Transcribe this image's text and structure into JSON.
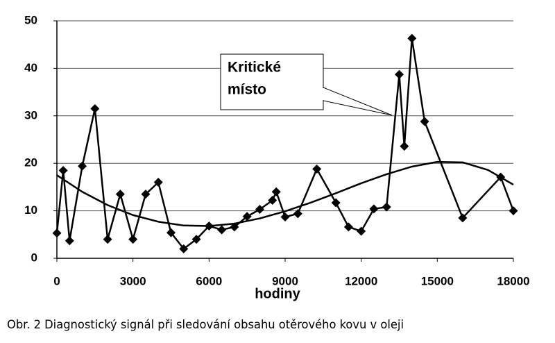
{
  "chart_data": {
    "type": "line",
    "xlabel": "hodiny",
    "caption": "Obr. 2 Diagnostický signál při sledování obsahu otěrového kovu v oleji",
    "annotation": {
      "lines": [
        "Kritické",
        "místo"
      ]
    },
    "x": [
      0,
      250,
      500,
      1000,
      1500,
      2000,
      2500,
      3000,
      3500,
      4000,
      4500,
      5000,
      5500,
      6000,
      6500,
      7000,
      7500,
      8000,
      8500,
      8650,
      9000,
      9500,
      10250,
      11000,
      11500,
      12000,
      12500,
      13000,
      13500,
      13700,
      14000,
      14500,
      16000,
      17500,
      18000
    ],
    "series": [
      {
        "color": "#000000",
        "values": [
          5.3,
          18.5,
          3.7,
          19.4,
          31.5,
          4.0,
          13.5,
          4.0,
          13.5,
          16.0,
          5.4,
          2.0,
          4.0,
          6.8,
          6.0,
          6.6,
          8.8,
          10.3,
          12.2,
          14.0,
          8.7,
          9.4,
          18.8,
          11.7,
          6.6,
          5.7,
          10.4,
          10.8,
          38.7,
          23.6,
          46.3,
          28.8,
          8.5,
          17.1,
          10.0
        ]
      }
    ],
    "trendline": {
      "color": "#000000",
      "x": [
        0,
        1000,
        2000,
        3000,
        4000,
        5000,
        6000,
        7000,
        8000,
        9000,
        10000,
        11000,
        12000,
        13000,
        14000,
        15000,
        16000,
        17000,
        18000
      ],
      "values": [
        17.5,
        14,
        11.2,
        9.1,
        7.7,
        6.9,
        6.8,
        7.3,
        8.4,
        9.9,
        11.7,
        13.7,
        15.8,
        17.7,
        19.3,
        20.3,
        20.2,
        18.6,
        15.5
      ]
    },
    "xlim": [
      0,
      18000
    ],
    "xticks": [
      0,
      3000,
      6000,
      9000,
      12000,
      15000,
      18000
    ],
    "ylim": [
      0,
      50
    ],
    "yticks": [
      0,
      10,
      20,
      30,
      40,
      50
    ],
    "grid": true
  }
}
